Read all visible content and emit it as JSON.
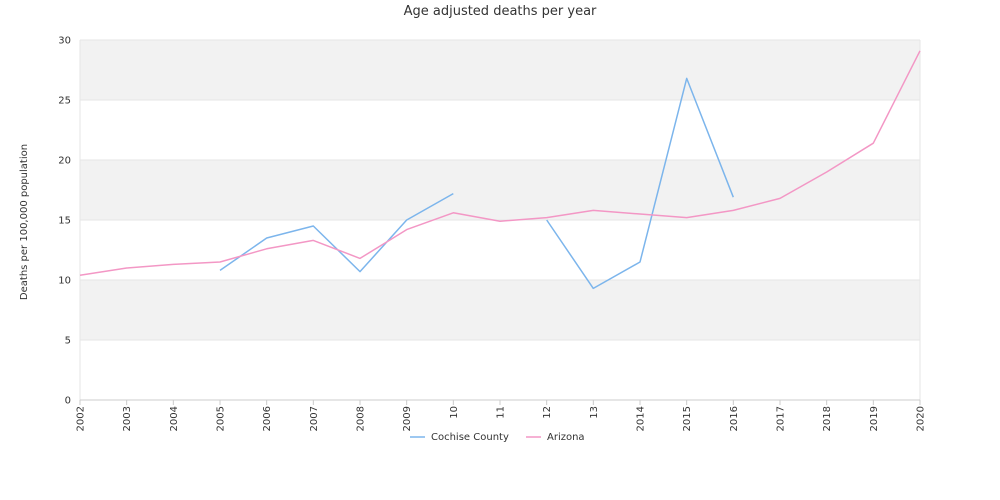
{
  "chart_data": {
    "type": "line",
    "title": "Age adjusted deaths per year",
    "xlabel": "",
    "ylabel": "Deaths per 100,000 population",
    "ylim": [
      0,
      30
    ],
    "yticks": [
      0,
      5,
      10,
      15,
      20,
      25,
      30
    ],
    "x": [
      "2002",
      "2003",
      "2004",
      "2005",
      "2006",
      "2007",
      "2008",
      "2009",
      "2010",
      "2011",
      "2012",
      "2013",
      "2014",
      "2015",
      "2016",
      "2017",
      "2018",
      "2019",
      "2020"
    ],
    "x_tick_labels": [
      "2002",
      "2003",
      "2004",
      "2005",
      "2006",
      "2007",
      "2008",
      "2009",
      "10",
      "11",
      "12",
      "13",
      "2014",
      "2015",
      "2016",
      "2017",
      "2018",
      "2019",
      "2020"
    ],
    "grid": true,
    "legend_position": "bottom",
    "series": [
      {
        "name": "Cochise County",
        "color": "#7cb5ec",
        "values": [
          null,
          null,
          null,
          10.8,
          13.5,
          14.5,
          10.7,
          15.0,
          17.2,
          null,
          15.0,
          9.3,
          11.5,
          26.8,
          16.9,
          null,
          null,
          null,
          null
        ]
      },
      {
        "name": "Arizona",
        "color": "#f397c5",
        "values": [
          10.4,
          11.0,
          11.3,
          11.5,
          12.6,
          13.3,
          11.8,
          14.2,
          15.6,
          14.9,
          15.2,
          15.8,
          15.5,
          15.2,
          15.8,
          16.8,
          19.0,
          21.4,
          29.1
        ]
      }
    ],
    "band_colors": [
      "#ffffff",
      "#f2f2f2"
    ]
  }
}
